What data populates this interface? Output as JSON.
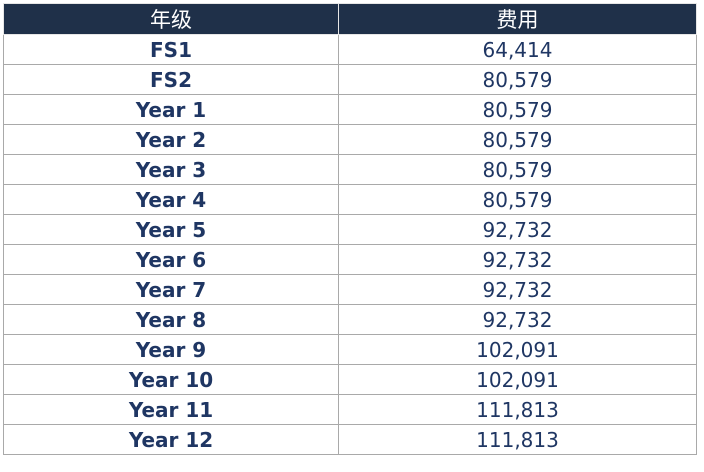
{
  "table": {
    "headers": {
      "grade": "年级",
      "fee": "费用"
    },
    "rows": [
      {
        "grade": "FS1",
        "fee": "64,414"
      },
      {
        "grade": "FS2",
        "fee": "80,579"
      },
      {
        "grade": "Year 1",
        "fee": "80,579"
      },
      {
        "grade": "Year 2",
        "fee": "80,579"
      },
      {
        "grade": "Year 3",
        "fee": "80,579"
      },
      {
        "grade": "Year 4",
        "fee": "80,579"
      },
      {
        "grade": "Year 5",
        "fee": "92,732"
      },
      {
        "grade": "Year 6",
        "fee": "92,732"
      },
      {
        "grade": "Year 7",
        "fee": "92,732"
      },
      {
        "grade": "Year 8",
        "fee": "92,732"
      },
      {
        "grade": "Year 9",
        "fee": "102,091"
      },
      {
        "grade": "Year 10",
        "fee": "102,091"
      },
      {
        "grade": "Year 11",
        "fee": "111,813"
      },
      {
        "grade": "Year 12",
        "fee": "111,813"
      }
    ]
  },
  "colors": {
    "header_background": "#1f3049",
    "header_text": "#ffffff",
    "body_text": "#1f3663",
    "grid_lines": "#a9a9a9"
  }
}
